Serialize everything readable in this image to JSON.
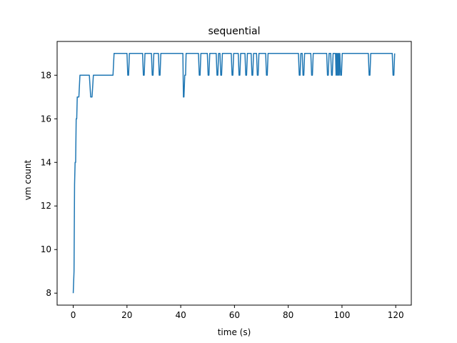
{
  "chart_data": {
    "type": "line",
    "title": "sequential",
    "xlabel": "time (s)",
    "ylabel": "vm count",
    "xlim": [
      -5.99,
      125.79
    ],
    "ylim": [
      7.45,
      19.55
    ],
    "xticks": [
      0,
      20,
      40,
      60,
      80,
      100,
      120
    ],
    "yticks": [
      8,
      10,
      12,
      14,
      16,
      18
    ],
    "grid": false,
    "line_color": "#1f77b4",
    "series": [
      {
        "x": [
          0,
          0.3,
          0.5,
          0.7,
          0.9,
          1.1,
          1.3,
          1.5,
          1.7,
          2.1,
          2.5,
          3.0,
          6.0,
          6.5,
          7.0,
          7.5,
          14.8,
          15.2,
          20.0,
          20.3,
          20.6,
          20.9,
          25.8,
          26.1,
          26.4,
          26.7,
          29.1,
          29.4,
          29.7,
          30.0,
          31.7,
          32.0,
          32.3,
          32.6,
          40.8,
          41.0,
          41.2,
          41.5,
          41.8,
          42.0,
          42.3,
          42.6,
          46.6,
          46.9,
          47.2,
          47.5,
          49.9,
          50.2,
          50.5,
          50.8,
          53.2,
          53.5,
          53.8,
          54.1,
          54.6,
          54.9,
          55.2,
          55.5,
          58.8,
          59.1,
          59.4,
          59.7,
          61.4,
          61.7,
          62.0,
          62.3,
          63.9,
          64.2,
          64.5,
          64.8,
          66.2,
          66.5,
          66.8,
          67.1,
          68.2,
          68.5,
          68.8,
          69.1,
          71.6,
          71.9,
          72.2,
          72.5,
          83.8,
          84.1,
          84.4,
          84.7,
          85.2,
          85.5,
          85.8,
          86.1,
          88.4,
          88.7,
          89.0,
          89.3,
          94.3,
          94.6,
          94.9,
          95.2,
          95.8,
          96.1,
          96.4,
          96.7,
          97.6,
          97.8,
          98.0,
          98.2,
          98.4,
          98.6,
          98.8,
          99.0,
          99.2,
          99.5,
          99.8,
          100.1,
          109.8,
          110.1,
          110.4,
          110.7,
          118.7,
          119.0,
          119.3,
          119.6
        ],
        "y": [
          8,
          9,
          13,
          14,
          14,
          16,
          16,
          17,
          17,
          17,
          18,
          18,
          18,
          17,
          17,
          18,
          18,
          19,
          19,
          18,
          18,
          19,
          19,
          18,
          18,
          19,
          19,
          18,
          18,
          19,
          19,
          18,
          18,
          19,
          19,
          17,
          17,
          18,
          18,
          19,
          19,
          19,
          19,
          18,
          18,
          19,
          19,
          18,
          18,
          19,
          19,
          18,
          18,
          19,
          19,
          18,
          18,
          19,
          19,
          18,
          18,
          19,
          19,
          18,
          18,
          19,
          19,
          18,
          18,
          19,
          19,
          18,
          18,
          19,
          19,
          18,
          18,
          19,
          19,
          18,
          18,
          19,
          19,
          18,
          18,
          19,
          19,
          18,
          18,
          19,
          19,
          18,
          18,
          19,
          19,
          18,
          18,
          19,
          19,
          18,
          18,
          19,
          19,
          18,
          19,
          18,
          19,
          18,
          19,
          18,
          19,
          18,
          18,
          19,
          19,
          18,
          18,
          19,
          19,
          18,
          18,
          19
        ]
      }
    ]
  }
}
